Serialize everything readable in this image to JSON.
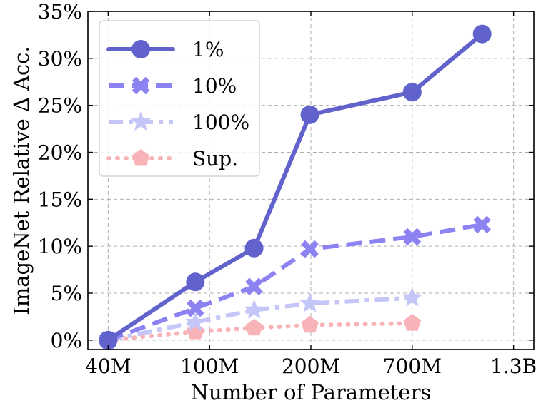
{
  "chart_data": {
    "type": "line",
    "title": "",
    "xlabel": "Number of Parameters",
    "ylabel": "ImageNet Relative Δ Acc.",
    "grid": true,
    "legend_position": "top-left",
    "x_ticks": [
      {
        "label": "40M",
        "pos": 0
      },
      {
        "label": "100M",
        "pos": 1
      },
      {
        "label": "200M",
        "pos": 2
      },
      {
        "label": "700M",
        "pos": 3
      },
      {
        "label": "1.3B",
        "pos": 4
      }
    ],
    "xlim": [
      -0.2,
      4.2
    ],
    "ylim": [
      -1,
      35
    ],
    "y_ticks": [
      {
        "label": "0%",
        "value": 0
      },
      {
        "label": "5%",
        "value": 5
      },
      {
        "label": "10%",
        "value": 10
      },
      {
        "label": "15%",
        "value": 15
      },
      {
        "label": "20%",
        "value": 20
      },
      {
        "label": "25%",
        "value": 25
      },
      {
        "label": "30%",
        "value": 30
      },
      {
        "label": "35%",
        "value": 35
      }
    ],
    "series": [
      {
        "name": "1%",
        "color": "#6262cc",
        "marker": "circle",
        "dash": "solid",
        "points": [
          [
            0,
            0.0
          ],
          [
            0.86,
            6.2
          ],
          [
            1.44,
            9.8
          ],
          [
            1.99,
            24.0
          ],
          [
            3.0,
            26.4
          ],
          [
            3.69,
            32.6
          ]
        ]
      },
      {
        "name": "10%",
        "color": "#8c82f2",
        "marker": "x",
        "dash": "dashed",
        "points": [
          [
            0,
            0.0
          ],
          [
            0.86,
            3.4
          ],
          [
            1.44,
            5.7
          ],
          [
            1.99,
            9.7
          ],
          [
            3.0,
            11.0
          ],
          [
            3.69,
            12.3
          ]
        ]
      },
      {
        "name": "100%",
        "color": "#c4c6f7",
        "marker": "star",
        "dash": "dashdot",
        "points": [
          [
            0,
            0.0
          ],
          [
            0.86,
            1.9
          ],
          [
            1.44,
            3.2
          ],
          [
            1.99,
            3.9
          ],
          [
            3.0,
            4.5
          ]
        ]
      },
      {
        "name": "Sup.",
        "color": "#f7b3b8",
        "marker": "pentagon",
        "dash": "dotted",
        "points": [
          [
            0,
            0.0
          ],
          [
            0.86,
            0.9
          ],
          [
            1.44,
            1.3
          ],
          [
            1.99,
            1.6
          ],
          [
            3.0,
            1.8
          ]
        ]
      }
    ]
  }
}
